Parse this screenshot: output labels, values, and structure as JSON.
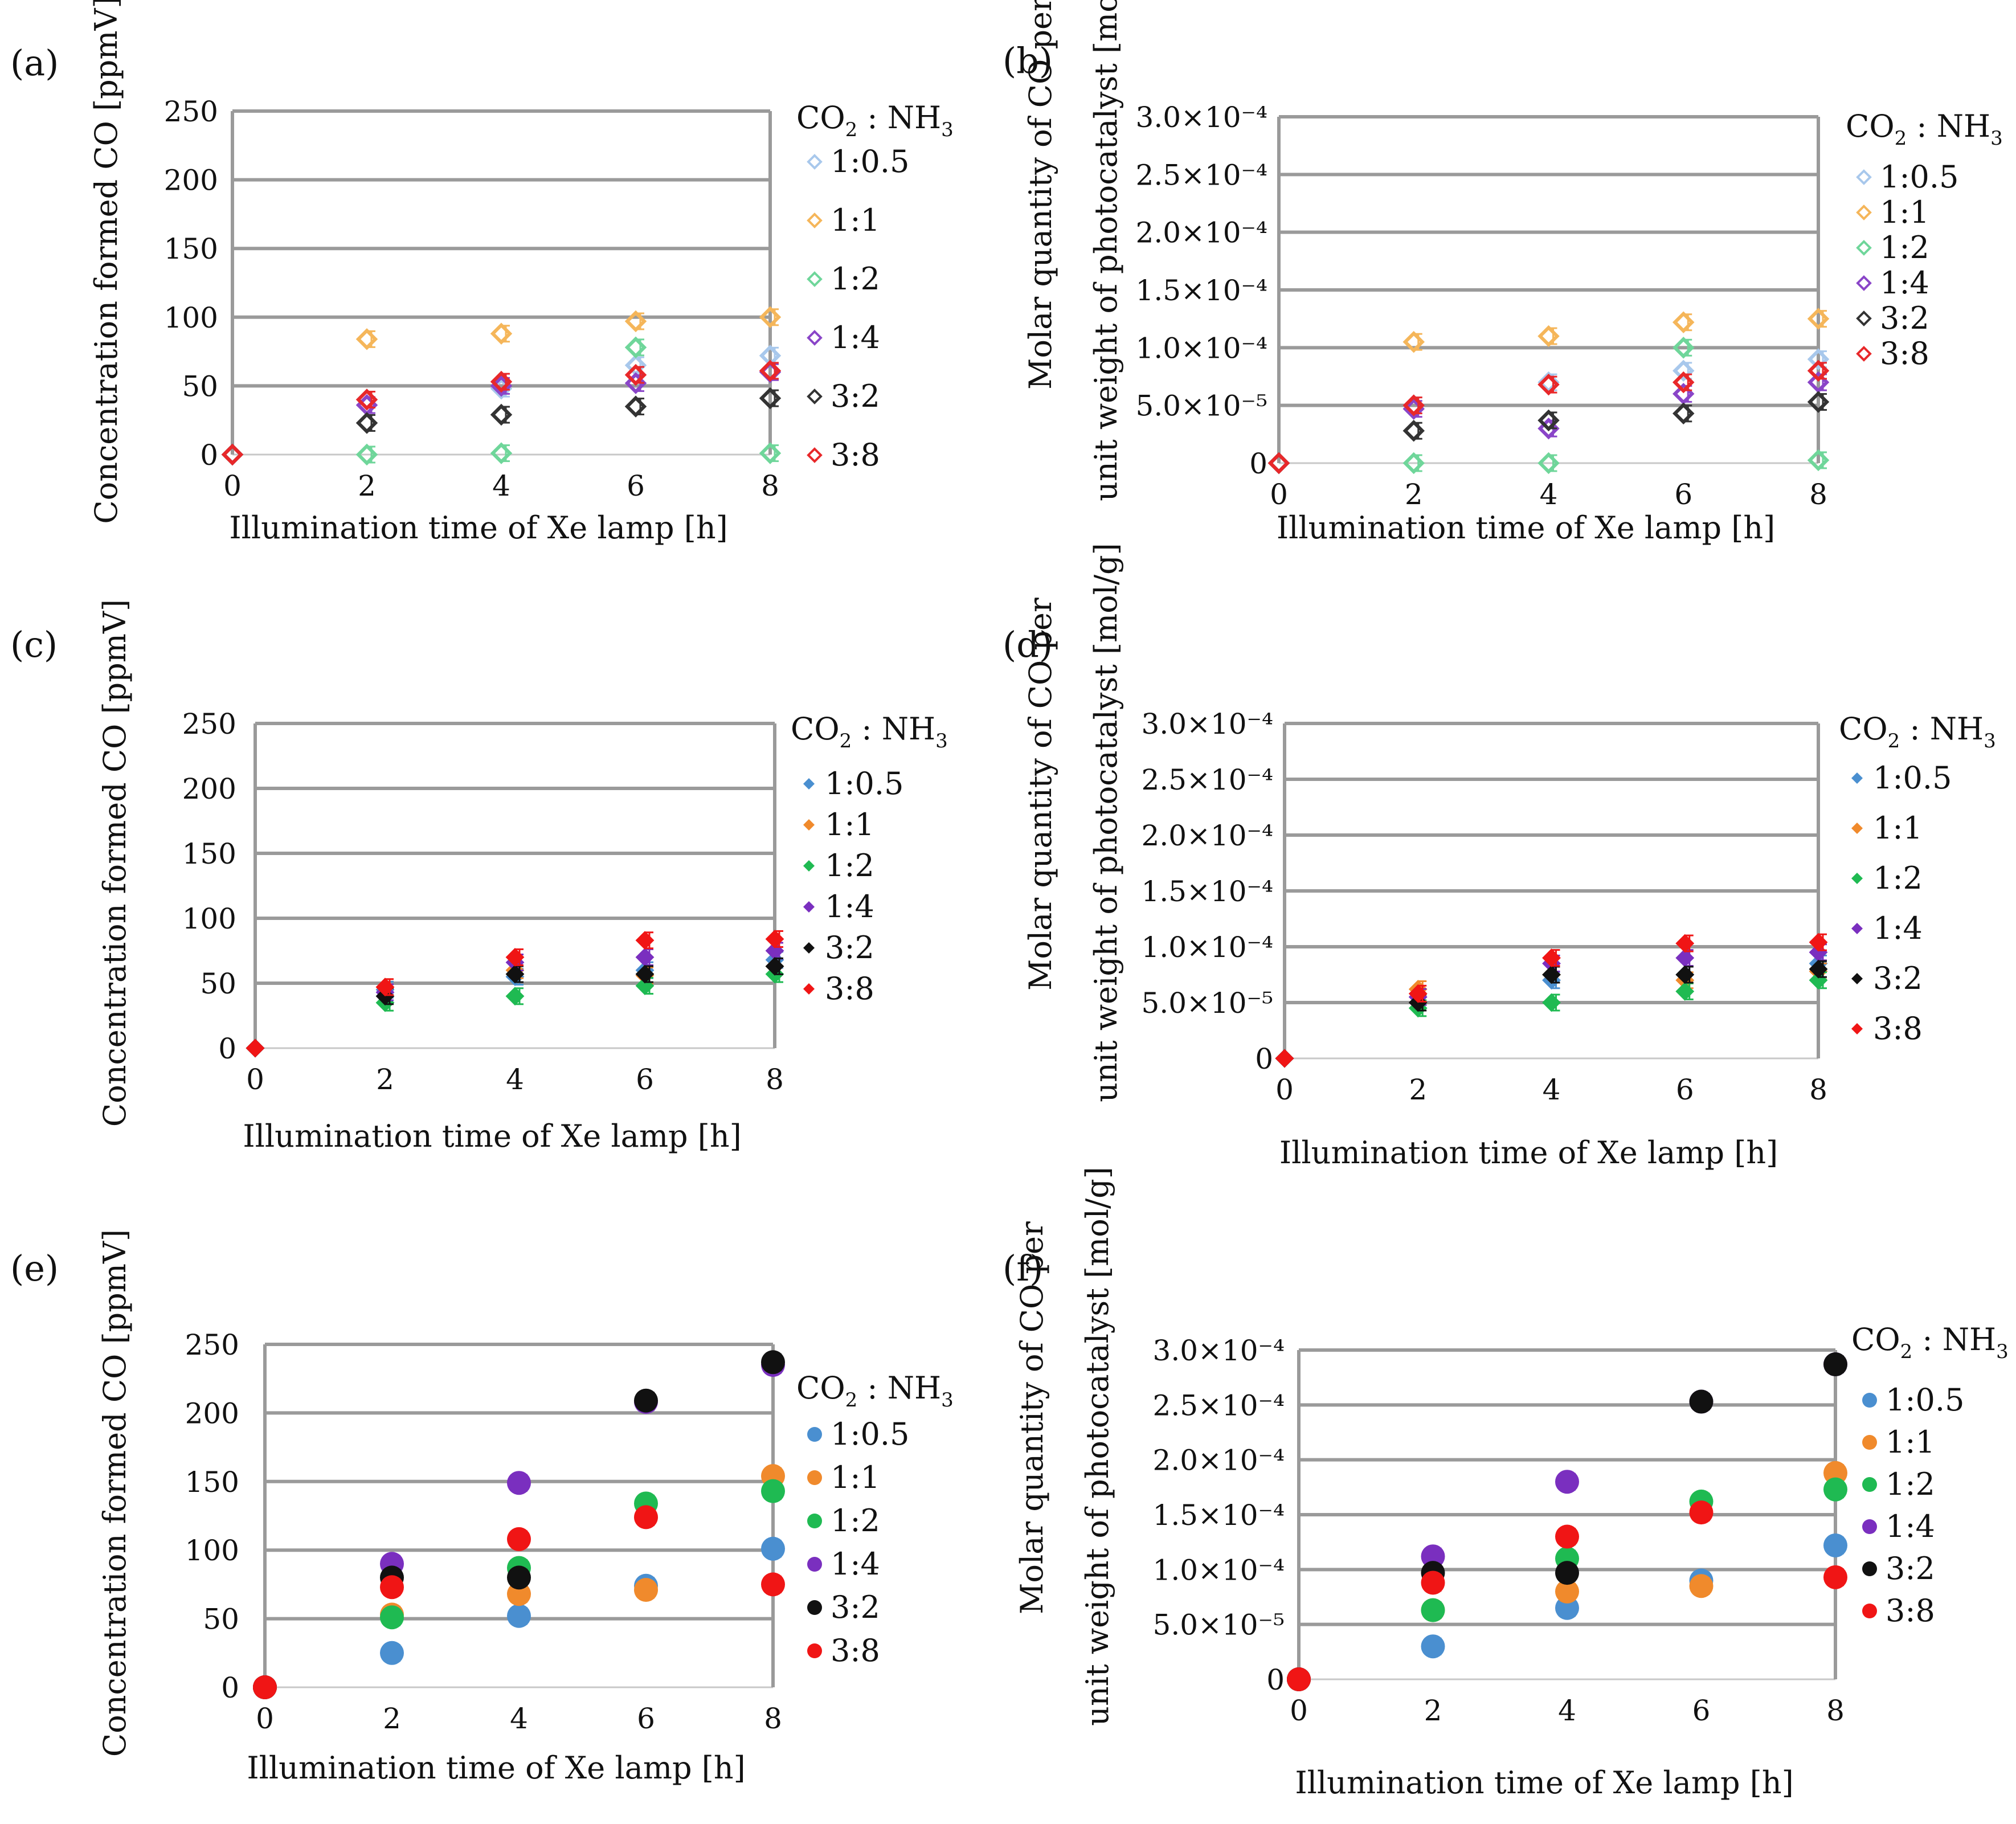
{
  "figure": {
    "legend_title_main": "CO",
    "legend_title_sub1": "2",
    "legend_title_mid": " : NH",
    "legend_title_sub2": "3",
    "axis_label_conc": "Concentration formed CO [ppmV]",
    "axis_label_molar_line1": "Molar quantity of CO per",
    "axis_label_molar_line2": "unit weight of photocatalyst [mol/g]",
    "x_axis_label": "Illumination time of Xe lamp [h]",
    "series_colors": {
      "1:0.5": "#4a8fd0",
      "1:1": "#f08a2c",
      "1:2": "#1fba52",
      "1:4": "#7a2fbf",
      "3:2": "#111111",
      "3:8": "#f01515"
    },
    "faded_colors": {
      "1:0.5": "#a8c8ec",
      "1:1": "#f5b65a",
      "1:2": "#6fd69a",
      "1:4": "#8a45c8",
      "3:2": "#333333",
      "3:8": "#e8282a"
    }
  },
  "chart_data": [
    {
      "panel": "(a)",
      "type": "scatter",
      "marker": "open-diamond",
      "title": "",
      "xlabel": "Illumination time of Xe lamp [h]",
      "ylabel": "Concentration formed CO [ppmV]",
      "xlim": [
        0,
        8
      ],
      "ylim": [
        0,
        250
      ],
      "x_ticks": [
        "0",
        "2",
        "4",
        "6",
        "8"
      ],
      "y_ticks": [
        "0",
        "50",
        "100",
        "150",
        "200",
        "250"
      ],
      "x": [
        0,
        2,
        4,
        6,
        8
      ],
      "series": [
        {
          "name": "1:0.5",
          "values": [
            0,
            40,
            48,
            65,
            72
          ]
        },
        {
          "name": "1:1",
          "values": [
            0,
            84,
            88,
            97,
            100
          ]
        },
        {
          "name": "1:2",
          "values": [
            0,
            0,
            1,
            78,
            1
          ]
        },
        {
          "name": "1:4",
          "values": [
            0,
            36,
            50,
            52,
            60
          ]
        },
        {
          "name": "3:2",
          "values": [
            0,
            23,
            29,
            35,
            41
          ]
        },
        {
          "name": "3:8",
          "values": [
            0,
            40,
            53,
            58,
            61
          ]
        }
      ]
    },
    {
      "panel": "(b)",
      "type": "scatter",
      "marker": "open-diamond",
      "title": "",
      "xlabel": "Illumination time of Xe lamp [h]",
      "ylabel": "Molar quantity of CO per unit weight of photocatalyst [mol/g]",
      "xlim": [
        0,
        8
      ],
      "ylim": [
        0,
        0.0003
      ],
      "x_ticks": [
        "0",
        "2",
        "4",
        "6",
        "8"
      ],
      "y_ticks": [
        "0",
        "5.0×10⁻⁵",
        "1.0×10⁻⁴",
        "1.5×10⁻⁴",
        "2.0×10⁻⁴",
        "2.5×10⁻⁴",
        "3.0×10⁻⁴"
      ],
      "x": [
        0,
        2,
        4,
        6,
        8
      ],
      "series": [
        {
          "name": "1:0.5",
          "values": [
            0,
            5e-05,
            7e-05,
            8e-05,
            9e-05
          ]
        },
        {
          "name": "1:1",
          "values": [
            0,
            0.000105,
            0.00011,
            0.000122,
            0.000125
          ]
        },
        {
          "name": "1:2",
          "values": [
            0,
            0.0,
            0.0,
            0.0001,
            2.5e-06
          ]
        },
        {
          "name": "1:4",
          "values": [
            0,
            4.7e-05,
            3e-05,
            6e-05,
            7e-05
          ]
        },
        {
          "name": "3:2",
          "values": [
            0,
            2.8e-05,
            3.7e-05,
            4.3e-05,
            5.3e-05
          ]
        },
        {
          "name": "3:8",
          "values": [
            0,
            5e-05,
            6.8e-05,
            7e-05,
            8e-05
          ]
        }
      ]
    },
    {
      "panel": "(c)",
      "type": "scatter",
      "marker": "filled-diamond",
      "title": "",
      "xlabel": "Illumination time of Xe lamp [h]",
      "ylabel": "Concentration formed CO [ppmV]",
      "xlim": [
        0,
        8
      ],
      "ylim": [
        0,
        250
      ],
      "x_ticks": [
        "0",
        "2",
        "4",
        "6",
        "8"
      ],
      "y_ticks": [
        "0",
        "50",
        "100",
        "150",
        "200",
        "250"
      ],
      "x": [
        0,
        2,
        4,
        6,
        8
      ],
      "series": [
        {
          "name": "1:0.5",
          "values": [
            0,
            45,
            55,
            60,
            68
          ]
        },
        {
          "name": "1:1",
          "values": [
            0,
            47,
            60,
            56,
            63
          ]
        },
        {
          "name": "1:2",
          "values": [
            0,
            35,
            40,
            48,
            57
          ]
        },
        {
          "name": "1:4",
          "values": [
            0,
            43,
            66,
            70,
            75
          ]
        },
        {
          "name": "3:2",
          "values": [
            0,
            40,
            57,
            57,
            63
          ]
        },
        {
          "name": "3:8",
          "values": [
            0,
            47,
            70,
            83,
            84
          ]
        }
      ]
    },
    {
      "panel": "(d)",
      "type": "scatter",
      "marker": "filled-diamond",
      "title": "",
      "xlabel": "Illumination time of Xe lamp [h]",
      "ylabel": "Molar quantity of CO per unit weight of photocatalyst [mol/g]",
      "xlim": [
        0,
        8
      ],
      "ylim": [
        0,
        0.0003
      ],
      "x_ticks": [
        "0",
        "2",
        "4",
        "6",
        "8"
      ],
      "y_ticks": [
        "0",
        "5.0×10⁻⁵",
        "1.0×10⁻⁴",
        "1.5×10⁻⁴",
        "2.0×10⁻⁴",
        "2.5×10⁻⁴",
        "3.0×10⁻⁴"
      ],
      "x": [
        0,
        2,
        4,
        6,
        8
      ],
      "series": [
        {
          "name": "1:0.5",
          "values": [
            0,
            5.5e-05,
            7e-05,
            7.5e-05,
            8.5e-05
          ]
        },
        {
          "name": "1:1",
          "values": [
            0,
            6.2e-05,
            7.5e-05,
            7e-05,
            7.8e-05
          ]
        },
        {
          "name": "1:2",
          "values": [
            0,
            4.5e-05,
            5e-05,
            6e-05,
            7e-05
          ]
        },
        {
          "name": "1:4",
          "values": [
            0,
            5.5e-05,
            8.5e-05,
            9e-05,
            9.5e-05
          ]
        },
        {
          "name": "3:2",
          "values": [
            0,
            5e-05,
            7.5e-05,
            7.5e-05,
            8e-05
          ]
        },
        {
          "name": "3:8",
          "values": [
            0,
            5.8e-05,
            9e-05,
            0.000103,
            0.000104
          ]
        }
      ]
    },
    {
      "panel": "(e)",
      "type": "scatter",
      "marker": "filled-circle",
      "title": "",
      "xlabel": "Illumination time of Xe lamp [h]",
      "ylabel": "Concentration formed CO [ppmV]",
      "xlim": [
        0,
        8
      ],
      "ylim": [
        0,
        250
      ],
      "x_ticks": [
        "0",
        "2",
        "4",
        "6",
        "8"
      ],
      "y_ticks": [
        "0",
        "50",
        "100",
        "150",
        "200",
        "250"
      ],
      "x": [
        0,
        2,
        4,
        6,
        8
      ],
      "series": [
        {
          "name": "1:0.5",
          "values": [
            0,
            25,
            52,
            74,
            101
          ]
        },
        {
          "name": "1:1",
          "values": [
            0,
            53,
            68,
            71,
            154
          ]
        },
        {
          "name": "1:2",
          "values": [
            0,
            51,
            87,
            134,
            143
          ]
        },
        {
          "name": "1:4",
          "values": [
            0,
            90,
            149,
            208,
            235
          ]
        },
        {
          "name": "3:2",
          "values": [
            0,
            80,
            80,
            209,
            237
          ]
        },
        {
          "name": "3:8",
          "values": [
            0,
            73,
            108,
            124,
            75
          ]
        }
      ]
    },
    {
      "panel": "(f)",
      "type": "scatter",
      "marker": "filled-circle",
      "title": "",
      "xlabel": "Illumination time of Xe lamp [h]",
      "ylabel": "Molar quantity of CO per unit weight of photocatalyst [mol/g]",
      "xlim": [
        0,
        8
      ],
      "ylim": [
        0,
        0.0003
      ],
      "x_ticks": [
        "0",
        "2",
        "4",
        "6",
        "8"
      ],
      "y_ticks": [
        "0",
        "5.0×10⁻⁵",
        "1.0×10⁻⁴",
        "1.5×10⁻⁴",
        "2.0×10⁻⁴",
        "2.5×10⁻⁴",
        "3.0×10⁻⁴"
      ],
      "x": [
        0,
        2,
        4,
        6,
        8
      ],
      "series": [
        {
          "name": "1:0.5",
          "values": [
            0,
            3e-05,
            6.5e-05,
            9e-05,
            0.000122
          ]
        },
        {
          "name": "1:1",
          "values": [
            0,
            6.3e-05,
            8e-05,
            8.5e-05,
            0.000188
          ]
        },
        {
          "name": "1:2",
          "values": [
            0,
            6.3e-05,
            0.00011,
            0.000162,
            0.000173
          ]
        },
        {
          "name": "1:4",
          "values": [
            0,
            0.000112,
            0.00018,
            0.000253,
            0.000287
          ]
        },
        {
          "name": "3:2",
          "values": [
            0,
            9.7e-05,
            9.7e-05,
            0.000253,
            0.000287
          ]
        },
        {
          "name": "3:8",
          "values": [
            0,
            8.8e-05,
            0.00013,
            0.000152,
            9.3e-05
          ]
        }
      ]
    }
  ]
}
